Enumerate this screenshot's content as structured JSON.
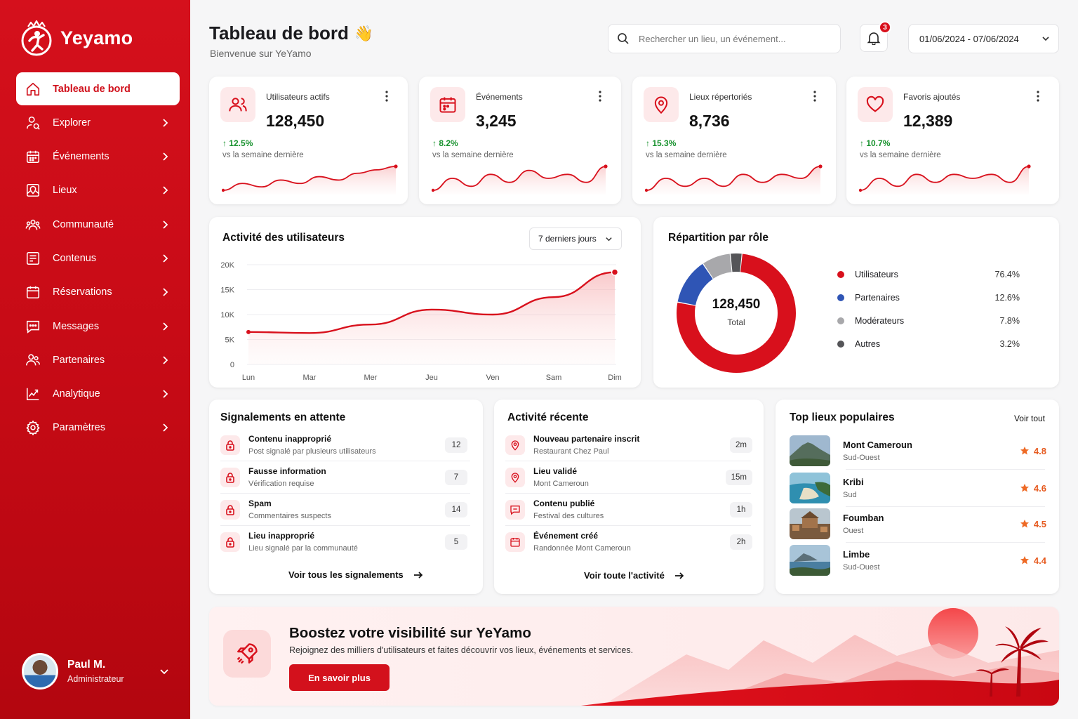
{
  "brand": {
    "name": "Yeyamo"
  },
  "sidebar": {
    "items": [
      {
        "label": "Tableau de bord",
        "icon": "home-icon",
        "active": true
      },
      {
        "label": "Explorer",
        "icon": "explore-icon"
      },
      {
        "label": "Événements",
        "icon": "calendar-icon"
      },
      {
        "label": "Lieux",
        "icon": "map-icon"
      },
      {
        "label": "Communauté",
        "icon": "community-icon"
      },
      {
        "label": "Contenus",
        "icon": "content-icon"
      },
      {
        "label": "Réservations",
        "icon": "calendar-icon"
      },
      {
        "label": "Messages",
        "icon": "message-icon"
      },
      {
        "label": "Partenaires",
        "icon": "partners-icon"
      },
      {
        "label": "Analytique",
        "icon": "chart-icon"
      },
      {
        "label": "Paramètres",
        "icon": "gear-icon"
      }
    ]
  },
  "user": {
    "name": "Paul M.",
    "role": "Administrateur"
  },
  "header": {
    "title": "Tableau de bord",
    "emoji": "👋",
    "subtitle": "Bienvenue sur YeYamo",
    "search_placeholder": "Rechercher un lieu, un événement...",
    "notifications": "3",
    "date_range": "01/06/2024 - 07/06/2024"
  },
  "stats": [
    {
      "label": "Utilisateurs actifs",
      "value": "128,450",
      "change": "↑ 12.5%",
      "vs": "vs la semaine dernière",
      "icon": "users-icon",
      "spark": [
        3,
        5,
        4,
        6,
        5,
        7,
        6,
        8,
        9,
        10
      ]
    },
    {
      "label": "Événements",
      "value": "3,245",
      "change": "↑ 8.2%",
      "vs": "vs la semaine dernière",
      "icon": "calendar-icon",
      "spark": [
        2,
        5,
        3,
        6,
        4,
        7,
        5,
        6,
        4,
        8
      ]
    },
    {
      "label": "Lieux répertoriés",
      "value": "8,736",
      "change": "↑ 15.3%",
      "vs": "vs la semaine dernière",
      "icon": "location-pin-icon",
      "spark": [
        2,
        5,
        3,
        5,
        3,
        6,
        4,
        6,
        5,
        8
      ]
    },
    {
      "label": "Favoris ajoutés",
      "value": "12,389",
      "change": "↑ 10.7%",
      "vs": "vs la semaine dernière",
      "icon": "heart-icon",
      "spark": [
        3,
        6,
        4,
        7,
        5,
        7,
        6,
        7,
        5,
        9
      ]
    }
  ],
  "activity": {
    "title": "Activité des utilisateurs",
    "range": "7 derniers jours",
    "chart_data": {
      "type": "area",
      "categories": [
        "Lun",
        "Mar",
        "Mer",
        "Jeu",
        "Ven",
        "Sam",
        "Dim"
      ],
      "values": [
        6500,
        6300,
        8000,
        11000,
        10000,
        13500,
        18500
      ],
      "ylim": [
        0,
        20000
      ],
      "yticks": [
        "0",
        "5K",
        "10K",
        "15K",
        "20K"
      ],
      "color": "#d8101c"
    }
  },
  "roles": {
    "title": "Répartition par rôle",
    "total_value": "128,450",
    "total_label": "Total",
    "chart_data": {
      "type": "pie",
      "categories": [
        "Utilisateurs",
        "Partenaires",
        "Modérateurs",
        "Autres"
      ],
      "values": [
        76.4,
        12.6,
        7.8,
        3.2
      ],
      "labels": [
        "76.4%",
        "12.6%",
        "7.8%",
        "3.2%"
      ],
      "colors": [
        "#d8101c",
        "#2f55b5",
        "#a8a8ab",
        "#555558"
      ]
    }
  },
  "reports": {
    "title": "Signalements en attente",
    "items": [
      {
        "title": "Contenu inapproprié",
        "sub": "Post signalé par plusieurs utilisateurs",
        "count": "12"
      },
      {
        "title": "Fausse information",
        "sub": "Vérification requise",
        "count": "7"
      },
      {
        "title": "Spam",
        "sub": "Commentaires suspects",
        "count": "14"
      },
      {
        "title": "Lieu inapproprié",
        "sub": "Lieu signalé par la communauté",
        "count": "5"
      }
    ],
    "link": "Voir tous les signalements"
  },
  "recent": {
    "title": "Activité récente",
    "items": [
      {
        "title": "Nouveau partenaire inscrit",
        "sub": "Restaurant Chez Paul",
        "time": "2m",
        "icon": "location-pin-icon"
      },
      {
        "title": "Lieu validé",
        "sub": "Mont Cameroun",
        "time": "15m",
        "icon": "location-pin-icon"
      },
      {
        "title": "Contenu publié",
        "sub": "Festival des cultures",
        "time": "1h",
        "icon": "message-icon"
      },
      {
        "title": "Événement créé",
        "sub": "Randonnée Mont Cameroun",
        "time": "2h",
        "icon": "calendar-icon"
      }
    ],
    "link": "Voir toute l'activité"
  },
  "places": {
    "title": "Top lieux populaires",
    "see_all": "Voir tout",
    "items": [
      {
        "name": "Mont Cameroun",
        "region": "Sud-Ouest",
        "rating": "4.8"
      },
      {
        "name": "Kribi",
        "region": "Sud",
        "rating": "4.6"
      },
      {
        "name": "Foumban",
        "region": "Ouest",
        "rating": "4.5"
      },
      {
        "name": "Limbe",
        "region": "Sud-Ouest",
        "rating": "4.4"
      }
    ]
  },
  "banner": {
    "title": "Boostez votre visibilité sur YeYamo",
    "subtitle": "Rejoignez des milliers d'utilisateurs et faites découvrir vos lieux, événements et services.",
    "button": "En savoir plus"
  }
}
